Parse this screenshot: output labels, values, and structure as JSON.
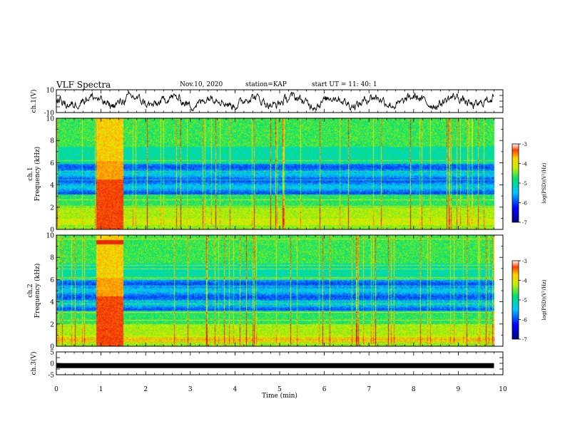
{
  "header": {
    "title": "VLF Spectra",
    "date": "Nov.10, 2020",
    "station": "station=KAP",
    "start_ut": "start UT =   11: 40: 1"
  },
  "colors": {
    "spectrum_stops": [
      "#0000c8",
      "#0050ff",
      "#00d0ff",
      "#00e070",
      "#b0f000",
      "#ffe000",
      "#ff7000",
      "#e00000"
    ],
    "trace": "#000000",
    "frame": "#000000"
  },
  "chart_data": [
    {
      "type": "line",
      "name": "waveform-ch1",
      "ylabel": "ch.1(V)",
      "ylim": [
        -10,
        10
      ],
      "yticks": [
        "10",
        "-10"
      ],
      "description_hidden": false,
      "x": [
        0,
        1,
        2,
        3,
        4,
        5,
        6,
        7,
        8,
        9,
        9.8
      ],
      "y": [
        0,
        -2,
        1,
        -2,
        0,
        1,
        2,
        0,
        1,
        2,
        0
      ]
    },
    {
      "type": "heatmap",
      "name": "spectrogram-ch1",
      "ylabel": "ch.1\nFrequency (kHz)",
      "ylim": [
        0,
        10
      ],
      "yticks": [
        "0",
        "2",
        "4",
        "6",
        "8",
        "10"
      ],
      "xlim": [
        0,
        10
      ],
      "colorbar": {
        "label": "log(PSD)(V²/Hz)",
        "range": [
          -7,
          -3
        ],
        "ticks": [
          "-3",
          "-4",
          "-5",
          "-6",
          "-7"
        ]
      }
    },
    {
      "type": "heatmap",
      "name": "spectrogram-ch2",
      "ylabel": "ch.2\nFrequency (kHz)",
      "ylim": [
        0,
        10
      ],
      "yticks": [
        "0",
        "2",
        "4",
        "6",
        "8",
        "10"
      ],
      "xlim": [
        0,
        10
      ],
      "colorbar": {
        "label": "log(PSD)(V²/Hz)",
        "range": [
          -7,
          -3
        ],
        "ticks": [
          "-3",
          "-4",
          "-5",
          "-6",
          "-7"
        ]
      }
    },
    {
      "type": "line",
      "name": "waveform-ch3",
      "ylabel": "ch.3(V)",
      "ylim": [
        -5,
        5
      ],
      "yticks": [
        "5",
        "0",
        "-5"
      ],
      "x": [
        0,
        9.8
      ],
      "y": [
        -1,
        -1
      ]
    }
  ],
  "xaxis": {
    "label": "Time (min)",
    "ticks": [
      "0",
      "1",
      "2",
      "3",
      "4",
      "5",
      "6",
      "7",
      "8",
      "9",
      "10"
    ],
    "range": [
      0,
      10
    ]
  }
}
